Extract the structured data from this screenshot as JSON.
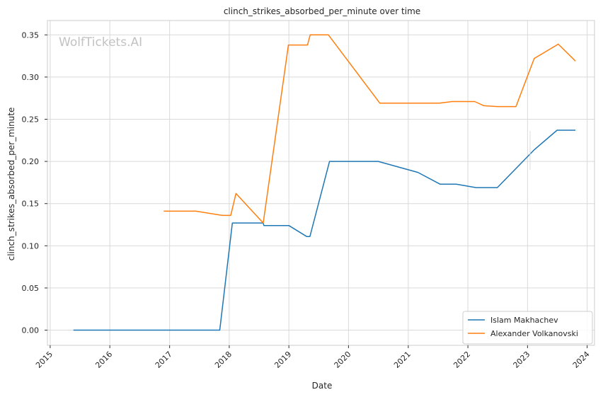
{
  "watermark": "WolfTickets.AI",
  "chart_data": {
    "type": "line",
    "title": "clinch_strikes_absorbed_per_minute over time",
    "xlabel": "Date",
    "ylabel": "clinch_strikes_absorbed_per_minute",
    "x_ticks": [
      "2015",
      "2016",
      "2017",
      "2018",
      "2019",
      "2020",
      "2021",
      "2022",
      "2023",
      "2024"
    ],
    "y_ticks": [
      "0.00",
      "0.05",
      "0.10",
      "0.15",
      "0.20",
      "0.25",
      "0.30",
      "0.35"
    ],
    "xlim": [
      "2014-12-15",
      "2024-02-15"
    ],
    "ylim": [
      -0.018,
      0.367
    ],
    "grid": true,
    "legend_position": "lower-right",
    "series": [
      {
        "name": "Islam Makhachev",
        "color": "#1f77b4",
        "points": [
          [
            "2015-05-23",
            0.0
          ],
          [
            "2017-11-04",
            0.0
          ],
          [
            "2018-01-20",
            0.127
          ],
          [
            "2018-07-28",
            0.127
          ],
          [
            "2018-08-01",
            0.124
          ],
          [
            "2019-01-01",
            0.124
          ],
          [
            "2019-04-20",
            0.111
          ],
          [
            "2019-05-10",
            0.111
          ],
          [
            "2019-09-07",
            0.2
          ],
          [
            "2020-07-01",
            0.2
          ],
          [
            "2021-03-01",
            0.187
          ],
          [
            "2021-07-15",
            0.173
          ],
          [
            "2021-10-22",
            0.173
          ],
          [
            "2022-02-20",
            0.169
          ],
          [
            "2022-06-30",
            0.169
          ],
          [
            "2023-02-12",
            0.214
          ],
          [
            "2023-07-01",
            0.237
          ],
          [
            "2023-10-21",
            0.237
          ]
        ]
      },
      {
        "name": "Alexander Volkanovski",
        "color": "#ff7f0e",
        "points": [
          [
            "2016-11-26",
            0.141
          ],
          [
            "2017-06-11",
            0.141
          ],
          [
            "2017-11-19",
            0.136
          ],
          [
            "2018-01-10",
            0.136
          ],
          [
            "2018-02-11",
            0.162
          ],
          [
            "2018-07-28",
            0.127
          ],
          [
            "2018-12-29",
            0.338
          ],
          [
            "2019-04-25",
            0.338
          ],
          [
            "2019-05-11",
            0.35
          ],
          [
            "2019-08-31",
            0.35
          ],
          [
            "2020-07-11",
            0.269
          ],
          [
            "2021-07-10",
            0.269
          ],
          [
            "2021-09-25",
            0.271
          ],
          [
            "2022-02-12",
            0.271
          ],
          [
            "2022-04-09",
            0.266
          ],
          [
            "2022-07-02",
            0.265
          ],
          [
            "2022-10-22",
            0.265
          ],
          [
            "2023-02-11",
            0.322
          ],
          [
            "2023-07-08",
            0.339
          ],
          [
            "2023-10-21",
            0.319
          ]
        ]
      }
    ]
  }
}
